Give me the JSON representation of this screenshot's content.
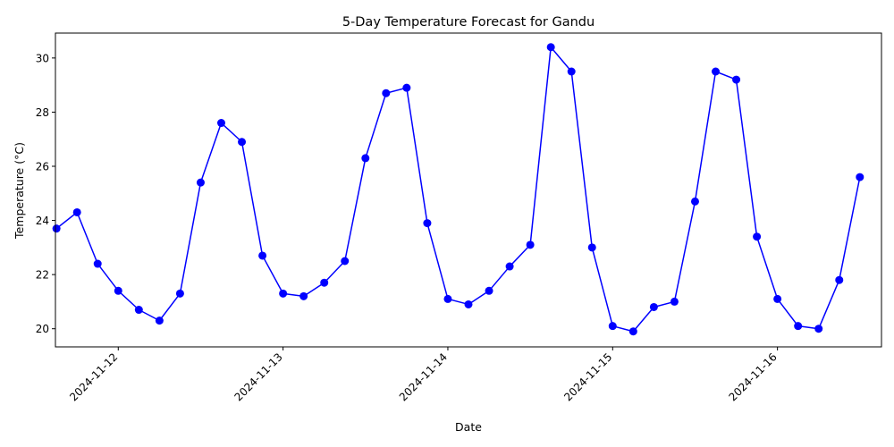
{
  "chart_data": {
    "type": "line",
    "title": "5-Day Temperature Forecast for Gandu",
    "xlabel": "Date",
    "ylabel": "Temperature (°C)",
    "x_tick_labels": [
      "2024-11-12",
      "2024-11-13",
      "2024-11-14",
      "2024-11-15",
      "2024-11-16"
    ],
    "x_tick_values": [
      24,
      32,
      40,
      48,
      56
    ],
    "xlim": [
      20.95,
      61.05
    ],
    "ylim": [
      19.33,
      30.92
    ],
    "y_ticks": [
      20,
      22,
      24,
      26,
      28,
      30
    ],
    "grid": false,
    "series": [
      {
        "name": "Temperature",
        "color": "#0000ff",
        "marker": "circle",
        "x": [
          21,
          22,
          23,
          24,
          25,
          26,
          27,
          28,
          29,
          30,
          31,
          32,
          33,
          34,
          35,
          36,
          37,
          38,
          39,
          40,
          41,
          42,
          43,
          44,
          45,
          46,
          47,
          48,
          49,
          50,
          51,
          52,
          53,
          54,
          55,
          56,
          57,
          58,
          59,
          60
        ],
        "values": [
          23.7,
          24.3,
          22.4,
          21.4,
          20.7,
          20.3,
          21.3,
          25.4,
          27.6,
          26.9,
          22.7,
          21.3,
          21.2,
          21.7,
          22.5,
          26.3,
          28.7,
          28.9,
          23.9,
          21.1,
          20.9,
          21.4,
          22.3,
          23.1,
          30.4,
          29.5,
          23.0,
          20.1,
          19.9,
          20.8,
          21.0,
          24.7,
          29.5,
          29.2,
          23.4,
          21.1,
          20.1,
          20.0,
          21.8,
          25.6
        ]
      }
    ]
  }
}
